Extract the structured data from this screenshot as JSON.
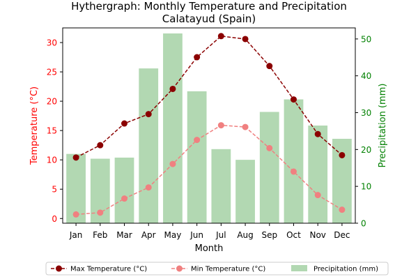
{
  "chart_data": {
    "type": "bar",
    "title_line1": "Hythergraph: Monthly Temperature and Precipitation",
    "title_line2": "Calatayud (Spain)",
    "xlabel": "Month",
    "ylabel_left": "Temperature (°C)",
    "ylabel_right": "Precipitation (mm)",
    "categories": [
      "Jan",
      "Feb",
      "Mar",
      "Apr",
      "May",
      "Jun",
      "Jul",
      "Aug",
      "Sep",
      "Oct",
      "Nov",
      "Dec"
    ],
    "ylim_left": [
      -0.8,
      32.5
    ],
    "ylim_right": [
      0,
      53
    ],
    "yticks_left": [
      0,
      5,
      10,
      15,
      20,
      25,
      30
    ],
    "yticks_right": [
      0,
      10,
      20,
      30,
      40,
      50
    ],
    "grid": false,
    "legend_position": "bottom",
    "series": [
      {
        "name": "Max Temperature (°C)",
        "type": "line",
        "axis": "left",
        "color": "#8b0000",
        "style": "dashed",
        "values": [
          10.4,
          12.5,
          16.2,
          17.8,
          22.1,
          27.5,
          31.1,
          30.6,
          26.0,
          20.3,
          14.4,
          10.8
        ]
      },
      {
        "name": "Min Temperature (°C)",
        "type": "line",
        "axis": "left",
        "color": "#f08080",
        "style": "dashed",
        "values": [
          0.7,
          1.0,
          3.4,
          5.3,
          9.3,
          13.4,
          15.9,
          15.6,
          12.0,
          8.0,
          4.0,
          1.5
        ]
      },
      {
        "name": "Precipitation (mm)",
        "type": "bar",
        "axis": "right",
        "color": "#b2d8b2",
        "values": [
          18.8,
          17.5,
          17.8,
          42.0,
          51.5,
          35.8,
          20.1,
          17.2,
          30.2,
          33.6,
          26.5,
          22.9
        ]
      }
    ],
    "colors": {
      "left_axis": "#ff0000",
      "right_axis": "#008000"
    }
  }
}
